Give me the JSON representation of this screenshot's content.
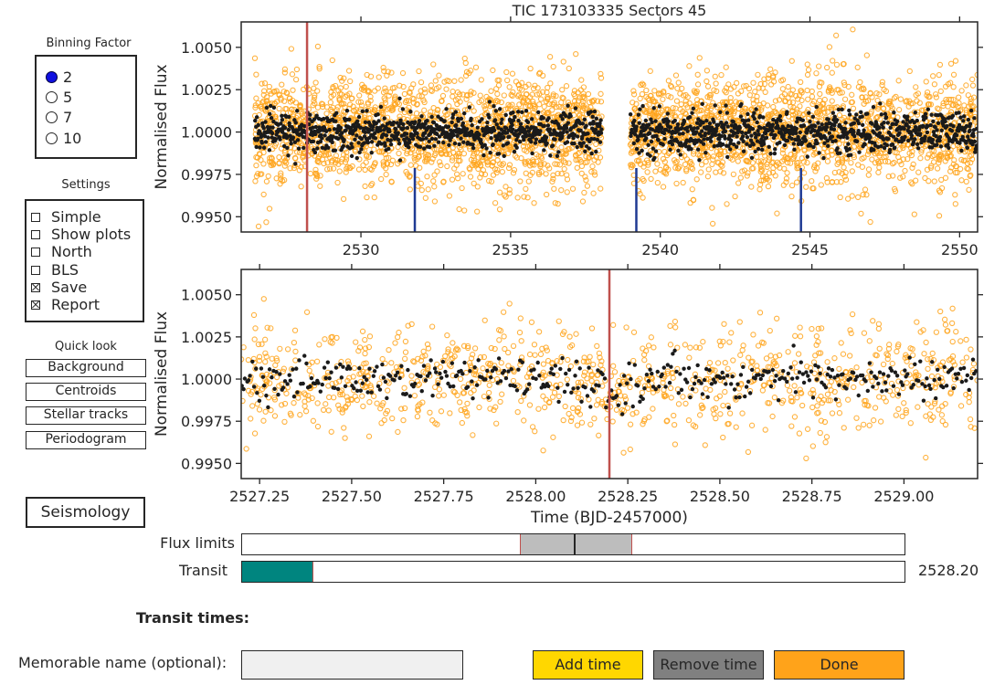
{
  "binning": {
    "title": "Binning Factor",
    "options": [
      "2",
      "5",
      "7",
      "10"
    ],
    "selected_index": 0
  },
  "settings": {
    "title": "Settings",
    "options": [
      {
        "label": "Simple",
        "checked": false
      },
      {
        "label": "Show plots",
        "checked": false
      },
      {
        "label": "North",
        "checked": false
      },
      {
        "label": "BLS",
        "checked": false
      },
      {
        "label": "Save",
        "checked": true
      },
      {
        "label": "Report",
        "checked": true
      }
    ]
  },
  "quick_look": {
    "title": "Quick look",
    "buttons": [
      "Background",
      "Centroids",
      "Stellar tracks",
      "Periodogram"
    ]
  },
  "seismology_label": "Seismology",
  "flux_limits": {
    "label": "Flux limits",
    "low": 0.42,
    "high": 0.59,
    "mid": 0.502
  },
  "transit_slider": {
    "label": "Transit",
    "fraction": 0.108,
    "value_text": "2528.20"
  },
  "transit_times_label": "Transit times:",
  "memorable_name": {
    "label": "Memorable name (optional):",
    "value": ""
  },
  "buttons": {
    "add": "Add time",
    "remove": "Remove time",
    "done": "Done"
  },
  "colors": {
    "raw": "#ffa41c",
    "binned": "#1a1a1a",
    "transit_line": "#c0504d",
    "marker": "#1f3a93",
    "teal": "#00857f",
    "add": "#ffd700",
    "remove": "#808080",
    "done": "#ffa31a",
    "radio": "#1010e0"
  },
  "chart_data": [
    {
      "type": "scatter",
      "title": "TIC 173103335    Sectors 45",
      "xlabel": "",
      "ylabel": "Normalised Flux",
      "xlim": [
        2526.0,
        2550.6
      ],
      "ylim": [
        0.9941,
        1.0065
      ],
      "x_ticks": [
        "2530",
        "2535",
        "2540",
        "2545",
        "2550"
      ],
      "y_ticks": [
        "1.0050",
        "1.0025",
        "1.0000",
        "0.9975",
        "0.9950"
      ],
      "segments": [
        [
          2526.45,
          2538.05
        ],
        [
          2539.0,
          2550.6
        ]
      ],
      "scatter_sigma": 0.0016,
      "binned_sigma": 0.0006,
      "transit_line_x": 2528.2,
      "transit_markers": [
        2531.8,
        2539.2,
        2544.7
      ],
      "series": []
    },
    {
      "type": "scatter",
      "title": "",
      "xlabel": "Time (BJD-2457000)",
      "ylabel": "Normalised Flux",
      "xlim": [
        2527.2,
        2529.2
      ],
      "ylim": [
        0.9941,
        1.0065
      ],
      "x_ticks": [
        "2527.25",
        "2527.50",
        "2527.75",
        "2528.00",
        "2528.25",
        "2528.50",
        "2528.75",
        "2529.00"
      ],
      "y_ticks": [
        "1.0050",
        "1.0025",
        "1.0000",
        "0.9975",
        "0.9950"
      ],
      "scatter_sigma": 0.0016,
      "binned_sigma": 0.0006,
      "transit_line_x": 2528.2,
      "transit_depth": 0.0008,
      "series": []
    }
  ]
}
